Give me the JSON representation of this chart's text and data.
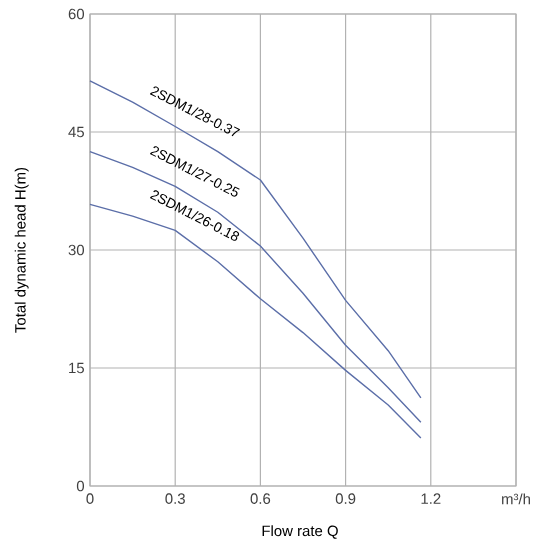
{
  "chart_data": {
    "type": "line",
    "xlabel": "Flow rate Q",
    "ylabel": "Total dynamic head H(m)",
    "series": [
      {
        "name": "2SDM1/28-0.37",
        "color": "#5b6ea8",
        "x": [
          0,
          0.15,
          0.3,
          0.45,
          0.6,
          0.75,
          0.9,
          1.05,
          1.165
        ],
        "values": [
          51.5,
          48.8,
          45.7,
          42.5,
          38.9,
          31.5,
          23.6,
          17.2,
          11.2
        ]
      },
      {
        "name": "2SDM1/27-0.25",
        "color": "#5b6ea8",
        "x": [
          0,
          0.15,
          0.3,
          0.45,
          0.6,
          0.75,
          0.9,
          1.05,
          1.165
        ],
        "values": [
          42.5,
          40.5,
          38.1,
          34.8,
          30.5,
          24.5,
          17.9,
          12.5,
          8.1
        ]
      },
      {
        "name": "2SDM1/26-0.18",
        "color": "#5b6ea8",
        "x": [
          0,
          0.15,
          0.3,
          0.45,
          0.6,
          0.75,
          0.9,
          1.05,
          1.165
        ],
        "values": [
          35.8,
          34.3,
          32.5,
          28.5,
          23.8,
          19.5,
          14.7,
          10.3,
          6.1
        ]
      }
    ],
    "xlim": [
      0,
      1.5
    ],
    "ylim": [
      0,
      60
    ],
    "xticks": [
      0,
      0.3,
      0.6,
      0.9,
      1.2,
      {
        "value": 1.5,
        "label": "m³/h"
      }
    ],
    "yticks": [
      0,
      15,
      30,
      45,
      60
    ],
    "grid": true,
    "legend": false,
    "marker": "none",
    "line_style": "solid"
  }
}
